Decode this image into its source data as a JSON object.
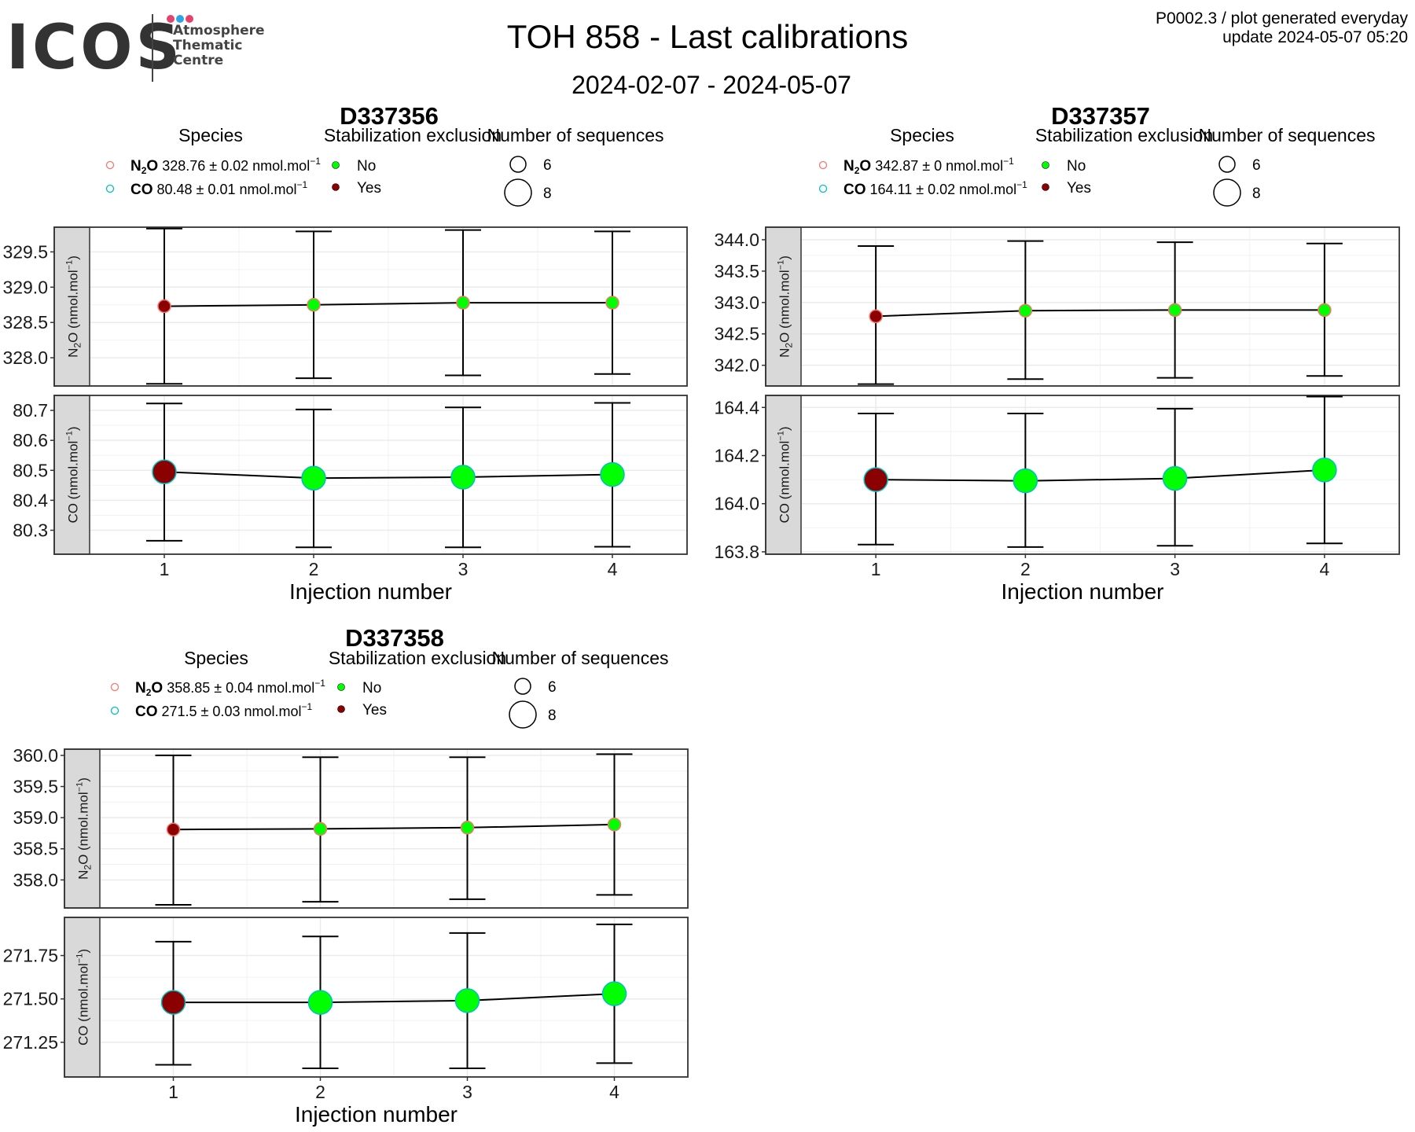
{
  "header": {
    "logo_word": "ICOS",
    "logo_sub": [
      "Atmosphere",
      "Thematic",
      "Centre"
    ],
    "logo_dot_colors": [
      "#e6426e",
      "#2fa4e7",
      "#e6426e"
    ],
    "title": "TOH 858 - Last calibrations",
    "subtitle": "2024-02-07 - 2024-05-07",
    "plot_id": "P0002.3 / plot generated everyday",
    "update": "update  2024-05-07 05:20"
  },
  "legend_labels": {
    "species": "Species",
    "stabilization": "Stabilization exclusion",
    "sequences": "Number of sequences",
    "no": "No",
    "yes": "Yes",
    "seq_small": "6",
    "seq_large": "8"
  },
  "colors": {
    "n2o_outline": "#f8766d",
    "co_outline": "#00bfc4",
    "no_fill": "#00ff00",
    "yes_fill": "#8b0000",
    "strip_bg": "#d9d9d9",
    "grid": "#ebebeb"
  },
  "chart_data": [
    {
      "type": "scatter",
      "title": "D337356",
      "xlabel": "Injection number",
      "x": [
        1,
        2,
        3,
        4
      ],
      "species_legend": [
        {
          "name": "N2O",
          "text": "328.76 ± 0.02 nmol.mol"
        },
        {
          "name": "CO",
          "text": "80.48 ± 0.01 nmol.mol"
        }
      ],
      "panels": [
        {
          "ylabel": "N2O (nmol.mol-1)",
          "ylim": [
            327.6,
            329.85
          ],
          "ticks": [
            328.0,
            328.5,
            329.0,
            329.5
          ],
          "tick_labels": [
            "328.0",
            "328.5",
            "329.0",
            "329.5"
          ],
          "values": [
            328.73,
            328.75,
            328.78,
            328.78
          ],
          "err_low": [
            327.63,
            327.71,
            327.75,
            327.77
          ],
          "err_high": [
            329.83,
            329.79,
            329.81,
            329.79
          ],
          "excluded": [
            true,
            false,
            false,
            false
          ],
          "size": "6"
        },
        {
          "ylabel": "CO (nmol.mol-1)",
          "ylim": [
            80.22,
            80.75
          ],
          "ticks": [
            80.3,
            80.4,
            80.5,
            80.6,
            80.7
          ],
          "tick_labels": [
            "80.3",
            "80.4",
            "80.5",
            "80.6",
            "80.7"
          ],
          "values": [
            80.495,
            80.474,
            80.477,
            80.486
          ],
          "err_low": [
            80.265,
            80.243,
            80.243,
            80.245
          ],
          "err_high": [
            80.723,
            80.703,
            80.71,
            80.725
          ],
          "excluded": [
            true,
            false,
            false,
            false
          ],
          "size": "8"
        }
      ]
    },
    {
      "type": "scatter",
      "title": "D337357",
      "xlabel": "Injection number",
      "x": [
        1,
        2,
        3,
        4
      ],
      "species_legend": [
        {
          "name": "N2O",
          "text": "342.87 ± 0 nmol.mol"
        },
        {
          "name": "CO",
          "text": "164.11 ± 0.02 nmol.mol"
        }
      ],
      "panels": [
        {
          "ylabel": "N2O (nmol.mol-1)",
          "ylim": [
            341.67,
            344.2
          ],
          "ticks": [
            342.0,
            342.5,
            343.0,
            343.5,
            344.0
          ],
          "tick_labels": [
            "342.0",
            "342.5",
            "343.0",
            "343.5",
            "344.0"
          ],
          "values": [
            342.78,
            342.87,
            342.88,
            342.88
          ],
          "err_low": [
            341.7,
            341.78,
            341.8,
            341.83
          ],
          "err_high": [
            343.9,
            343.98,
            343.96,
            343.94
          ],
          "excluded": [
            true,
            false,
            false,
            false
          ],
          "size": "6"
        },
        {
          "ylabel": "CO (nmol.mol-1)",
          "ylim": [
            163.79,
            164.45
          ],
          "ticks": [
            163.8,
            164.0,
            164.2,
            164.4
          ],
          "tick_labels": [
            "163.8",
            "164.0",
            "164.2",
            "164.4"
          ],
          "values": [
            164.1,
            164.095,
            164.105,
            164.14
          ],
          "err_low": [
            163.83,
            163.82,
            163.825,
            163.835
          ],
          "err_high": [
            164.375,
            164.375,
            164.395,
            164.445
          ],
          "excluded": [
            true,
            false,
            false,
            false
          ],
          "size": "8"
        }
      ]
    },
    {
      "type": "scatter",
      "title": "D337358",
      "xlabel": "Injection number",
      "x": [
        1,
        2,
        3,
        4
      ],
      "species_legend": [
        {
          "name": "N2O",
          "text": "358.85 ± 0.04 nmol.mol"
        },
        {
          "name": "CO",
          "text": "271.5 ± 0.03 nmol.mol"
        }
      ],
      "panels": [
        {
          "ylabel": "N2O (nmol.mol-1)",
          "ylim": [
            357.55,
            360.1
          ],
          "ticks": [
            358.0,
            358.5,
            359.0,
            359.5,
            360.0
          ],
          "tick_labels": [
            "358.0",
            "358.5",
            "359.0",
            "359.5",
            "360.0"
          ],
          "values": [
            358.81,
            358.82,
            358.84,
            358.89
          ],
          "err_low": [
            357.6,
            357.65,
            357.69,
            357.76
          ],
          "err_high": [
            360.0,
            359.97,
            359.97,
            360.02
          ],
          "excluded": [
            true,
            false,
            false,
            false
          ],
          "size": "6"
        },
        {
          "ylabel": "CO (nmol.mol-1)",
          "ylim": [
            271.05,
            271.97
          ],
          "ticks": [
            271.25,
            271.5,
            271.75
          ],
          "tick_labels": [
            "271.25",
            "271.50",
            "271.75"
          ],
          "values": [
            271.48,
            271.48,
            271.49,
            271.53
          ],
          "err_low": [
            271.12,
            271.1,
            271.1,
            271.13
          ],
          "err_high": [
            271.83,
            271.86,
            271.88,
            271.93
          ],
          "excluded": [
            true,
            false,
            false,
            false
          ],
          "size": "8"
        }
      ]
    }
  ]
}
